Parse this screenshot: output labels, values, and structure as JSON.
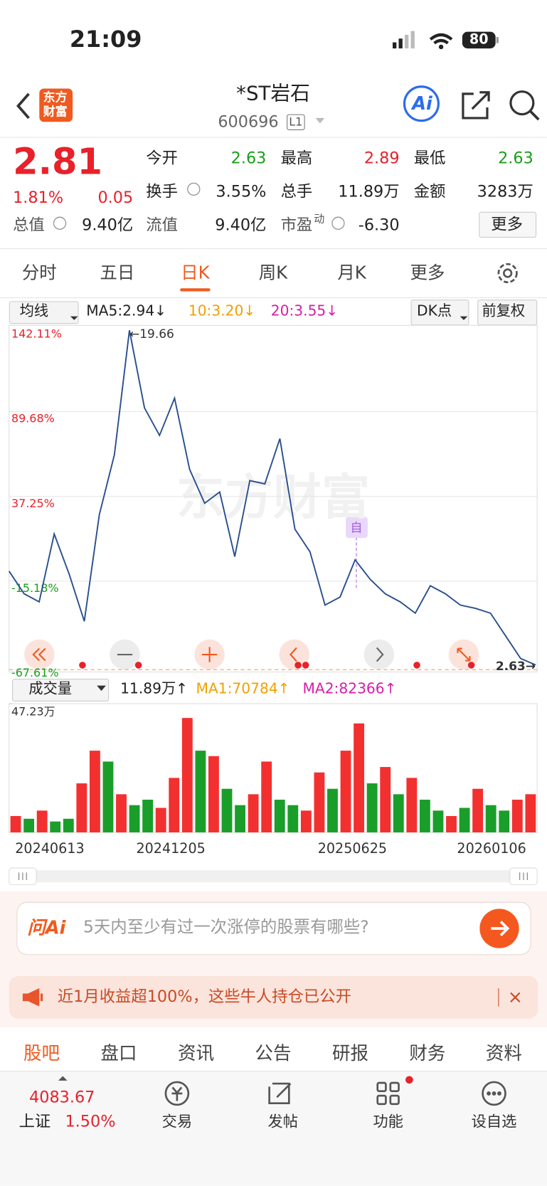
{
  "status": {
    "time": "21:09",
    "battery": "80"
  },
  "header": {
    "logo": [
      "东方",
      "财富"
    ],
    "title": "*ST岩石",
    "code": "600696",
    "level": "L1",
    "ai": "Ai"
  },
  "quote": {
    "price": "2.81",
    "change_pct": "1.81%",
    "change": "0.05",
    "rows": [
      [
        {
          "label": "今开",
          "value": "2.63"
        },
        {
          "label": "最高",
          "value": "2.89"
        },
        {
          "label": "最低",
          "value": "2.63"
        }
      ],
      [
        {
          "label": "换手",
          "value": "3.55%"
        },
        {
          "label": "总手",
          "value": "11.89万"
        },
        {
          "label": "金额",
          "value": "3283万"
        }
      ],
      [
        {
          "label": "总值",
          "value": "9.40亿"
        },
        {
          "label": "流值",
          "value": "9.40亿"
        },
        {
          "label": "市盈",
          "sup": "动",
          "value": "-6.30"
        }
      ]
    ],
    "more": "更多"
  },
  "tabs": [
    "分时",
    "五日",
    "日K",
    "周K",
    "月K",
    "更多"
  ],
  "indicators": {
    "selector": "均线",
    "ma": [
      "MA5:2.94↓",
      "10:3.20↓",
      "20:3.55↓"
    ],
    "buttons": [
      "DK点",
      "前复权"
    ]
  },
  "volume_header": {
    "selector": "成交量",
    "items": [
      "11.89万↑",
      "MA1:70784↑",
      "MA2:82366↑"
    ]
  },
  "chart_data": [
    {
      "type": "line",
      "color": "#2a4f8f",
      "watermark": "东方财富",
      "marker": "自",
      "values": [
        -9,
        -23,
        -28,
        14,
        -11,
        -40,
        26,
        63,
        140,
        92,
        75,
        98,
        54,
        33,
        40,
        0,
        47,
        45,
        73,
        17,
        3,
        -30,
        -25,
        -2,
        -14,
        -23,
        -28,
        -35,
        -18,
        -23,
        -30,
        -32,
        -35,
        -49,
        -63,
        -67
      ],
      "ylim": [
        -67.61,
        142.11
      ],
      "yticks": [
        {
          "value": 142.11,
          "label": "142.11%"
        },
        {
          "value": 89.68,
          "label": "89.68%"
        },
        {
          "value": 37.25,
          "label": "37.25%"
        },
        {
          "value": -15.18,
          "label": "-15.18%"
        },
        {
          "value": -67.61,
          "label": "-67.61%"
        }
      ],
      "annotations": {
        "high": "←19.66",
        "last": "2.63→"
      }
    },
    {
      "type": "bar",
      "x_labels": [
        "20240613",
        "20241205",
        "20250625",
        "20260106"
      ],
      "values": [
        6,
        5,
        8,
        4,
        5,
        18,
        30,
        26,
        14,
        10,
        12,
        9,
        20,
        42,
        30,
        28,
        16,
        10,
        14,
        26,
        12,
        10,
        8,
        22,
        16,
        30,
        40,
        18,
        24,
        14,
        20,
        12,
        8,
        6,
        9,
        16,
        10,
        8,
        12,
        14
      ],
      "colors": [
        "#f23030",
        "#1a9e2a",
        "#f23030",
        "#1a9e2a",
        "#1a9e2a",
        "#f23030",
        "#f23030",
        "#1a9e2a",
        "#f23030",
        "#1a9e2a",
        "#1a9e2a",
        "#f23030",
        "#f23030",
        "#f23030",
        "#1a9e2a",
        "#f23030",
        "#1a9e2a",
        "#1a9e2a",
        "#f23030",
        "#f23030",
        "#1a9e2a",
        "#1a9e2a",
        "#f23030",
        "#f23030",
        "#1a9e2a",
        "#f23030",
        "#f23030",
        "#1a9e2a",
        "#f23030",
        "#1a9e2a",
        "#f23030",
        "#1a9e2a",
        "#1a9e2a",
        "#f23030",
        "#1a9e2a",
        "#f23030",
        "#1a9e2a",
        "#1a9e2a",
        "#f23030",
        "#f23030"
      ],
      "ylim": [
        0,
        47.23
      ],
      "yticks": [
        {
          "value": 47.23,
          "label": "47.23万"
        }
      ]
    }
  ],
  "ask": {
    "brand": "问Ai",
    "placeholder": "5天内至少有过一次涨停的股票有哪些?"
  },
  "banner": "近1月收益超100%，这些牛人持仓已公开",
  "sections": [
    "股吧",
    "盘口",
    "资讯",
    "公告",
    "研报",
    "财务",
    "资料"
  ],
  "nav": {
    "index": {
      "value": "4083.67",
      "name": "上证",
      "change": "1.50%"
    },
    "items": [
      "交易",
      "发帖",
      "功能",
      "设自选"
    ]
  }
}
